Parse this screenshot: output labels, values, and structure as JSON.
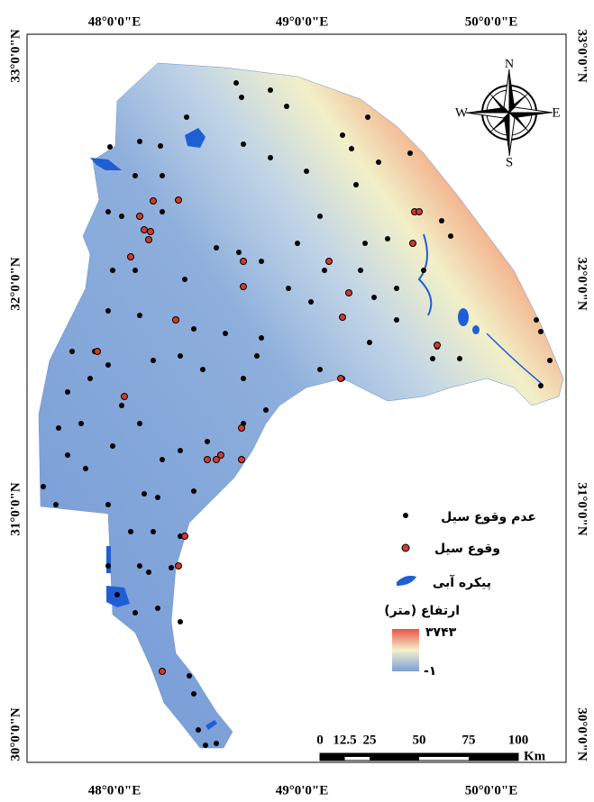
{
  "map": {
    "graticule": {
      "top": [
        "48°0'0\"E",
        "49°0'0\"E",
        "50°0'0\"E"
      ],
      "bottom": [
        "48°0'0\"E",
        "49°0'0\"E",
        "50°0'0\"E"
      ],
      "left": [
        "33°0'0\"N",
        "32°0'0\"N",
        "31°0'0\"N",
        "30°0'0\"N"
      ],
      "right": [
        "33°0'0\"N",
        "32°0'0\"N",
        "31°0'0\"N",
        "30°0'0\"N"
      ]
    },
    "compass": {
      "north": "N",
      "south": "S",
      "west": "W",
      "east": "E"
    },
    "legend": {
      "no_flood": "عدم وقوع سیل",
      "flood": "وقوع سیل",
      "water_body": "پیکره آبی",
      "elevation_title": "ارتفاع (متر)",
      "elevation_max": "۳۷۴۳",
      "elevation_min": "-۱"
    },
    "scale_bar": {
      "ticks": [
        0,
        12.5,
        25,
        50,
        75,
        100
      ],
      "unit": "Km"
    }
  }
}
